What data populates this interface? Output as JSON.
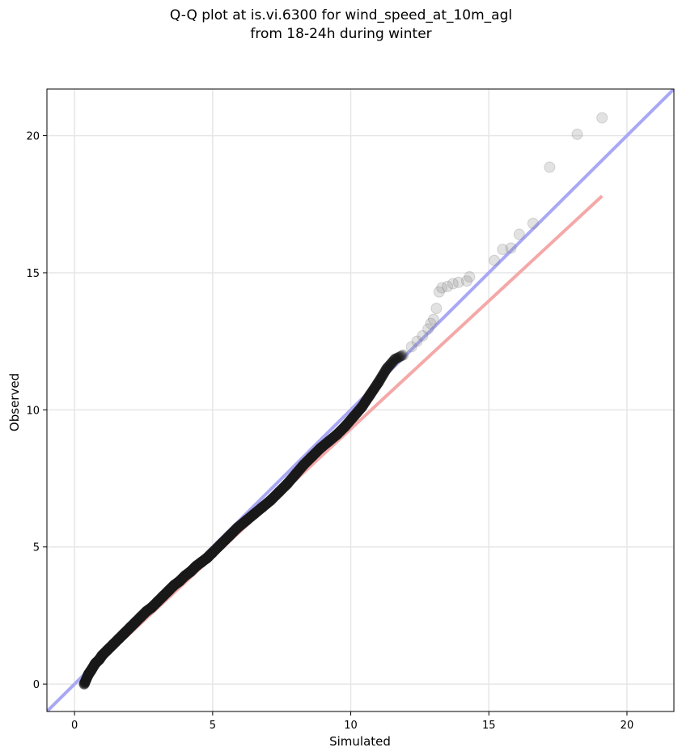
{
  "chart_data": {
    "type": "scatter",
    "title_line1": "Q-Q plot at is.vi.6300 for wind_speed_at_10m_agl",
    "title_line2": "from 18-24h during winter",
    "xlabel": "Simulated",
    "ylabel": "Observed",
    "xlim": [
      -1,
      21.7
    ],
    "ylim": [
      -1,
      21.7
    ],
    "xticks": [
      0,
      5,
      10,
      15,
      20
    ],
    "yticks": [
      0,
      5,
      10,
      15,
      20
    ],
    "grid": true,
    "reference_line_color": "#a8a8f5",
    "fit_line_color": "#f5a8a8",
    "fit_line": {
      "x": [
        0.3,
        19.1
      ],
      "y": [
        0.25,
        17.8
      ]
    },
    "points": {
      "x": [
        0.35,
        0.5,
        0.6,
        0.75,
        0.9,
        1.0,
        1.2,
        1.4,
        1.6,
        1.8,
        2.0,
        2.2,
        2.4,
        2.6,
        2.8,
        3.0,
        3.2,
        3.4,
        3.6,
        3.8,
        4.0,
        4.2,
        4.4,
        4.6,
        4.8,
        5.0,
        5.3,
        5.6,
        5.9,
        6.2,
        6.5,
        6.8,
        7.1,
        7.4,
        7.7,
        8.0,
        8.3,
        8.6,
        8.9,
        9.2,
        9.5,
        9.8,
        10.1,
        10.4,
        10.7,
        11.0,
        11.3,
        11.6,
        11.9,
        12.2,
        12.4,
        12.6,
        12.8,
        12.9,
        13.0,
        13.1,
        13.2,
        13.3,
        13.5,
        13.7,
        13.9,
        14.2,
        14.3,
        15.2,
        15.5,
        15.8,
        16.1,
        16.6,
        17.2,
        18.2,
        19.1
      ],
      "y": [
        0.0,
        0.35,
        0.5,
        0.75,
        0.9,
        1.05,
        1.25,
        1.45,
        1.65,
        1.85,
        2.05,
        2.25,
        2.45,
        2.65,
        2.8,
        3.0,
        3.2,
        3.4,
        3.6,
        3.75,
        3.95,
        4.1,
        4.3,
        4.45,
        4.6,
        4.8,
        5.1,
        5.4,
        5.7,
        5.95,
        6.2,
        6.45,
        6.7,
        7.0,
        7.3,
        7.65,
        8.0,
        8.3,
        8.6,
        8.85,
        9.1,
        9.4,
        9.75,
        10.1,
        10.55,
        11.0,
        11.5,
        11.85,
        12.0,
        12.3,
        12.5,
        12.7,
        12.95,
        13.15,
        13.3,
        13.7,
        14.3,
        14.45,
        14.5,
        14.6,
        14.65,
        14.7,
        14.85,
        15.45,
        15.85,
        15.9,
        16.4,
        16.8,
        18.85,
        20.05,
        20.65
      ]
    }
  }
}
